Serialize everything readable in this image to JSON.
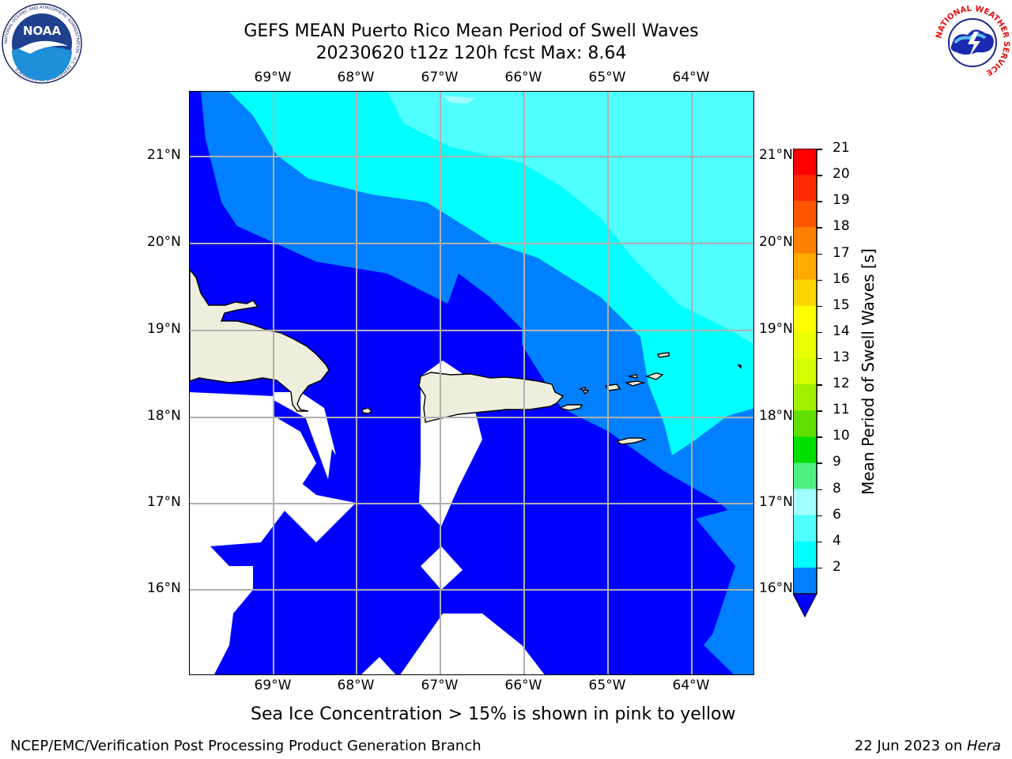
{
  "header": {
    "title_line1": "GEFS MEAN Puerto Rico Mean Period of Swell Waves",
    "title_line2": "20230620 t12z 120h fcst   Max: 8.64"
  },
  "logos": {
    "noaa_text": "NOAA",
    "noaa_ring_text": "NATIONAL OCEANIC AND ATMOSPHERIC ADMINISTRATION · U.S. DEPARTMENT OF COMMERCE",
    "nws_ring_text": "NATIONAL WEATHER SERVICE"
  },
  "map": {
    "lon_labels": [
      "69°W",
      "68°W",
      "67°W",
      "66°W",
      "65°W",
      "64°W"
    ],
    "lat_labels": [
      "21°N",
      "20°N",
      "19°N",
      "18°N",
      "17°N",
      "16°N"
    ],
    "colors": {
      "land": "#eeeedc",
      "below_2": "#0000ff",
      "c2_4": "#0080ff",
      "c4_6": "#00ffff",
      "c6_8": "#50ffff",
      "c8_10": "#a0ffff",
      "grid": "#b0b0b0"
    }
  },
  "colorbar": {
    "label": "Mean Period of Swell Waves [s]",
    "ticks": [
      "21",
      "20",
      "19",
      "18",
      "17",
      "16",
      "15",
      "14",
      "13",
      "12",
      "11",
      "10",
      "9",
      "8",
      "6",
      "4",
      "2"
    ],
    "colors": [
      "#ff0000",
      "#ff2a00",
      "#ff5500",
      "#ff8000",
      "#ffaa00",
      "#ffd500",
      "#ffff00",
      "#eaff00",
      "#d5ff00",
      "#a0f000",
      "#60e000",
      "#00e000",
      "#50f080",
      "#a0ffff",
      "#50ffff",
      "#00ffff",
      "#0080ff"
    ],
    "under_color": "#0000ff"
  },
  "footer": {
    "note": "Sea Ice Concentration > 15% is shown in pink to yellow",
    "credit": "NCEP/EMC/Verification Post Processing Product Generation Branch",
    "date_prefix": "22 Jun 2023 on ",
    "host": "Hera"
  }
}
